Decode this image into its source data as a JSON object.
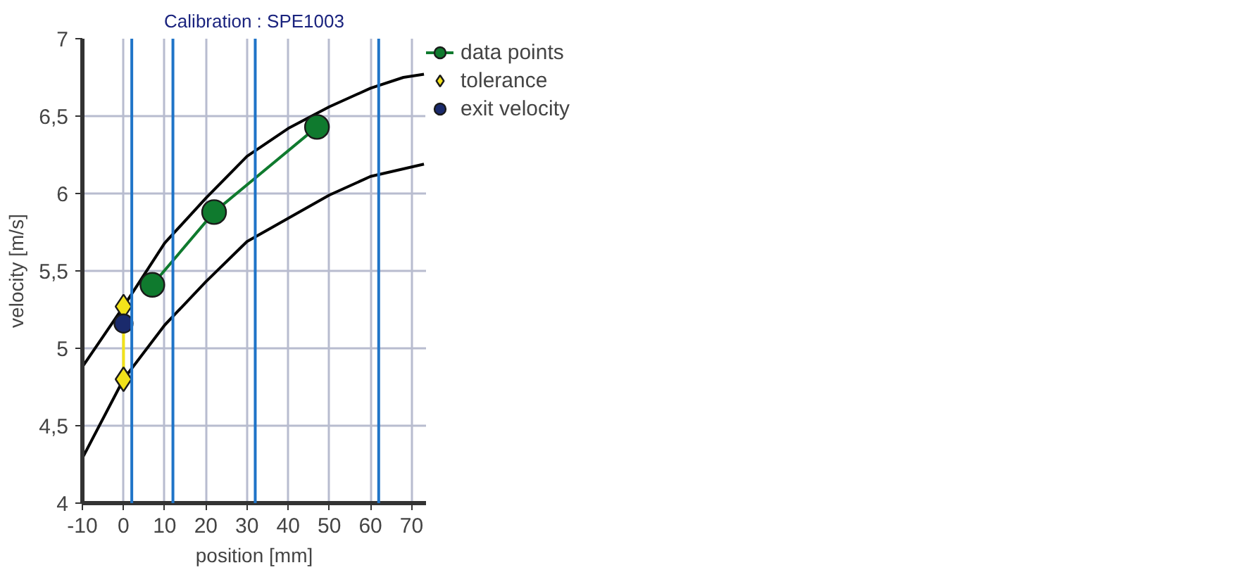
{
  "chart_data": {
    "type": "line",
    "title": "Calibration : SPE1003",
    "xlabel": "position [mm]",
    "ylabel": "velocity [m/s]",
    "xlim": [
      -10,
      73.5
    ],
    "ylim": [
      4,
      7
    ],
    "xticks": [
      -10,
      0,
      10,
      20,
      30,
      40,
      50,
      60,
      70
    ],
    "yticks": [
      4,
      {
        "value": 4.5,
        "label": "4,5"
      },
      5,
      {
        "value": 5.5,
        "label": "5,5"
      },
      6,
      {
        "value": 6.5,
        "label": "6,5"
      },
      7
    ],
    "grid": true,
    "legend": "right",
    "series": [
      {
        "color": "#000000",
        "marker": "none",
        "x": [
          -10,
          0,
          10,
          20,
          30,
          40,
          50,
          60,
          68,
          73
        ],
        "values": [
          4.88,
          5.27,
          5.68,
          5.97,
          6.24,
          6.42,
          6.56,
          6.68,
          6.75,
          6.77
        ]
      },
      {
        "color": "#000000",
        "marker": "none",
        "x": [
          -10,
          0,
          10,
          20,
          30,
          36,
          40,
          50,
          60,
          73
        ],
        "values": [
          4.29,
          4.8,
          5.15,
          5.43,
          5.69,
          5.78,
          5.84,
          5.99,
          6.11,
          6.19
        ]
      },
      {
        "name": "data points",
        "color": "#0f7a2e",
        "marker": "circle",
        "x": [
          7,
          22,
          47
        ],
        "values": [
          5.41,
          5.88,
          6.43
        ]
      },
      {
        "name": "tolerance",
        "color": "#f2e21a",
        "marker": "diamond",
        "x": [
          0,
          0
        ],
        "values": [
          5.27,
          4.8
        ]
      },
      {
        "name": "exit velocity",
        "color": "#1a2a6c",
        "marker": "circle",
        "x": [
          0
        ],
        "values": [
          5.16
        ]
      }
    ],
    "ref_lines": [
      {
        "axis": "x",
        "value": 2,
        "color": "#1f74c8"
      },
      {
        "axis": "x",
        "value": 12,
        "color": "#1f74c8"
      },
      {
        "axis": "x",
        "value": 32,
        "color": "#1f74c8"
      },
      {
        "axis": "x",
        "value": 62,
        "color": "#1f74c8"
      }
    ]
  }
}
